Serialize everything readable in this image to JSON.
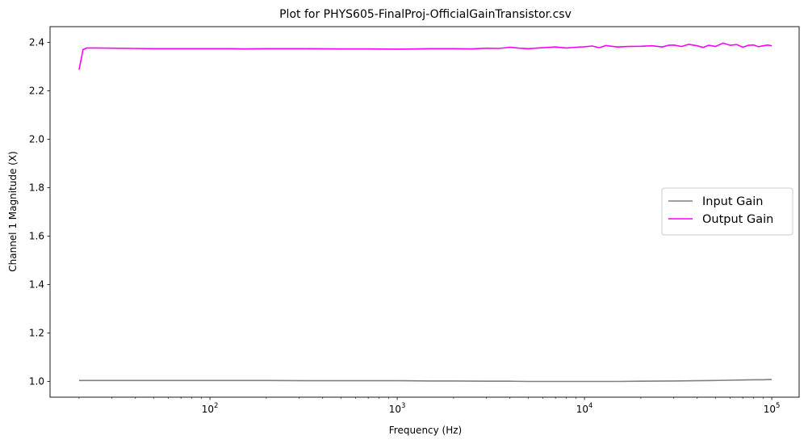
{
  "chart_data": {
    "type": "line",
    "title": "Plot for PHYS605-FinalProj-OfficialGainTransistor.csv",
    "xlabel": "Frequency (Hz)",
    "ylabel": "Channel 1 Magnitude (X)",
    "xscale": "log",
    "xlim": [
      14,
      140000
    ],
    "ylim": [
      0.935,
      2.465
    ],
    "xticks": [
      {
        "value": 100,
        "base": "10",
        "exp": "2"
      },
      {
        "value": 1000,
        "base": "10",
        "exp": "3"
      },
      {
        "value": 10000,
        "base": "10",
        "exp": "4"
      },
      {
        "value": 100000,
        "base": "10",
        "exp": "5"
      }
    ],
    "yticks": [
      {
        "value": 1.0,
        "label": "1.0"
      },
      {
        "value": 1.2,
        "label": "1.2"
      },
      {
        "value": 1.4,
        "label": "1.4"
      },
      {
        "value": 1.6,
        "label": "1.6"
      },
      {
        "value": 1.8,
        "label": "1.8"
      },
      {
        "value": 2.0,
        "label": "2.0"
      },
      {
        "value": 2.2,
        "label": "2.2"
      },
      {
        "value": 2.4,
        "label": "2.4"
      }
    ],
    "grid": false,
    "legend_position": "center-right",
    "series": [
      {
        "name": "Input Gain",
        "color": "#808080",
        "x": [
          20,
          30,
          50,
          100,
          200,
          400,
          600,
          1000,
          1500,
          2000,
          3000,
          4000,
          5000,
          6000,
          8000,
          10000,
          15000,
          20000,
          30000,
          40000,
          50000,
          60000,
          70000,
          80000,
          90000,
          100000
        ],
        "y": [
          1.004,
          1.004,
          1.004,
          1.004,
          1.004,
          1.003,
          1.003,
          1.003,
          1.002,
          1.002,
          1.001,
          1.001,
          1.0,
          1.0,
          1.0,
          1.0,
          1.0,
          1.001,
          1.002,
          1.003,
          1.004,
          1.005,
          1.006,
          1.007,
          1.007,
          1.008
        ]
      },
      {
        "name": "Output Gain",
        "color": "#ff00ff",
        "x": [
          20,
          21,
          22,
          25,
          30,
          40,
          50,
          70,
          100,
          130,
          150,
          200,
          300,
          500,
          700,
          1000,
          1500,
          2000,
          2500,
          3000,
          3500,
          4000,
          4500,
          5000,
          6000,
          7000,
          8000,
          9000,
          10000,
          11000,
          12000,
          13000,
          15000,
          17000,
          20000,
          23000,
          26000,
          28000,
          30000,
          33000,
          36000,
          40000,
          43000,
          46000,
          50000,
          55000,
          60000,
          65000,
          70000,
          75000,
          80000,
          85000,
          90000,
          95000,
          100000
        ],
        "y": [
          2.287,
          2.37,
          2.377,
          2.377,
          2.376,
          2.375,
          2.374,
          2.374,
          2.374,
          2.374,
          2.373,
          2.374,
          2.374,
          2.373,
          2.373,
          2.372,
          2.374,
          2.374,
          2.373,
          2.376,
          2.375,
          2.38,
          2.376,
          2.374,
          2.378,
          2.381,
          2.377,
          2.38,
          2.382,
          2.385,
          2.378,
          2.387,
          2.381,
          2.383,
          2.384,
          2.386,
          2.381,
          2.388,
          2.389,
          2.383,
          2.392,
          2.386,
          2.379,
          2.388,
          2.383,
          2.397,
          2.388,
          2.391,
          2.38,
          2.388,
          2.389,
          2.382,
          2.386,
          2.389,
          2.386
        ]
      }
    ]
  }
}
